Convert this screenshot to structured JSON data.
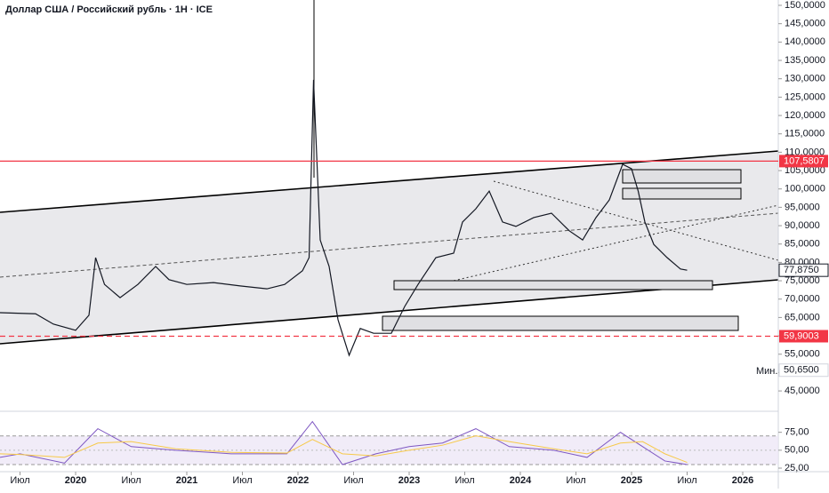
{
  "chart_data": [
    {
      "type": "line",
      "title": "Доллар США / Российский рубль · 1Н · ICE",
      "color": "#131722",
      "xlim": [
        2019.32,
        2026.32
      ],
      "xticks": [
        {
          "value": 2019.5,
          "label": "Июл"
        },
        2020,
        {
          "value": 2020.5,
          "label": "Июл"
        },
        2021,
        {
          "value": 2021.5,
          "label": "Июл"
        },
        2022,
        {
          "value": 2022.5,
          "label": "Июл"
        },
        2023,
        {
          "value": 2023.5,
          "label": "Июл"
        },
        2024,
        {
          "value": 2024.5,
          "label": "Июл"
        },
        2025,
        {
          "value": 2025.5,
          "label": "Июл"
        },
        2026
      ],
      "ylim": [
        39700,
        151450
      ],
      "yticks": [
        {
          "value": 45000,
          "label": "45,0000"
        },
        {
          "value": 50000,
          "label": "50,0000"
        },
        {
          "value": 55000,
          "label": "55,0000"
        },
        {
          "value": 60000,
          "label": "60,0000"
        },
        {
          "value": 65000,
          "label": "65,0000"
        },
        {
          "value": 70000,
          "label": "70,0000"
        },
        {
          "value": 75000,
          "label": "75,0000"
        },
        {
          "value": 80000,
          "label": "80,0000"
        },
        {
          "value": 85000,
          "label": "85,0000"
        },
        {
          "value": 90000,
          "label": "90,0000"
        },
        {
          "value": 95000,
          "label": "95,0000"
        },
        {
          "value": 100000,
          "label": "100,0000"
        },
        {
          "value": 105000,
          "label": "105,0000"
        },
        {
          "value": 110000,
          "label": "110,0000"
        },
        {
          "value": 115000,
          "label": "115,0000"
        },
        {
          "value": 120000,
          "label": "120,0000"
        },
        {
          "value": 125000,
          "label": "125,0000"
        },
        {
          "value": 130000,
          "label": "130,0000"
        },
        {
          "value": 135000,
          "label": "135,0000"
        },
        {
          "value": 140000,
          "label": "140,0000"
        },
        {
          "value": 145000,
          "label": "145,0000"
        },
        {
          "value": 150000,
          "label": "150,0000"
        }
      ],
      "x": [
        2019.32,
        2019.64,
        2019.8,
        2020.0,
        2020.12,
        2020.18,
        2020.26,
        2020.4,
        2020.56,
        2020.72,
        2020.84,
        2021.0,
        2021.24,
        2021.48,
        2021.72,
        2021.88,
        2022.04,
        2022.1,
        2022.14,
        2022.2,
        2022.28,
        2022.36,
        2022.46,
        2022.56,
        2022.68,
        2022.84,
        2022.96,
        2023.08,
        2023.24,
        2023.4,
        2023.48,
        2023.6,
        2023.72,
        2023.84,
        2023.96,
        2024.12,
        2024.28,
        2024.44,
        2024.56,
        2024.68,
        2024.8,
        2024.92,
        2025.0,
        2025.06,
        2025.12,
        2025.2,
        2025.32,
        2025.44,
        2025.5
      ],
      "values": [
        66300,
        66000,
        63200,
        61500,
        65600,
        81300,
        74000,
        70400,
        74000,
        78900,
        75300,
        74000,
        74500,
        73600,
        72800,
        74000,
        77700,
        81300,
        129700,
        86100,
        78900,
        64400,
        54700,
        62000,
        60700,
        60700,
        68000,
        74000,
        81300,
        82500,
        91000,
        94600,
        99400,
        91000,
        89800,
        92200,
        93400,
        88600,
        86100,
        92200,
        97000,
        106700,
        105500,
        99400,
        91000,
        84900,
        81300,
        78200,
        77875
      ],
      "levels": [
        {
          "value": 107580.7,
          "value_label": "107,5807",
          "color": "#f23645",
          "dashed": false
        },
        {
          "value": 59900.3,
          "value_label": "59,9003",
          "color": "#f23645",
          "dashed": true
        }
      ],
      "last": {
        "value": 77875,
        "value_label": "77,8750"
      },
      "min": {
        "label": "Мин.",
        "value": 50650,
        "value_label": "50,6500"
      }
    },
    {
      "type": "line",
      "ylim": [
        21.3,
        104.3
      ],
      "yticks": [
        {
          "value": 25,
          "label": "25,00"
        },
        {
          "value": 50,
          "label": "50,00"
        },
        {
          "value": 75,
          "label": "75,00"
        }
      ],
      "band": [
        30,
        70
      ],
      "x": [
        2019.32,
        2019.5,
        2019.9,
        2020.2,
        2020.5,
        2020.9,
        2021.4,
        2021.9,
        2022.13,
        2022.4,
        2022.7,
        2023.0,
        2023.3,
        2023.6,
        2023.9,
        2024.3,
        2024.6,
        2024.9,
        2025.1,
        2025.3,
        2025.5
      ],
      "series": [
        {
          "color": "#7e57c2",
          "values": [
            40,
            45,
            32,
            80,
            55,
            50,
            45,
            45,
            90,
            30,
            45,
            55,
            60,
            80,
            55,
            50,
            40,
            75,
            55,
            35,
            30
          ]
        },
        {
          "color": "#f7c948",
          "values": [
            45,
            44,
            40,
            60,
            62,
            52,
            47,
            46,
            65,
            45,
            42,
            50,
            57,
            70,
            62,
            52,
            45,
            60,
            62,
            45,
            33
          ]
        }
      ]
    }
  ]
}
